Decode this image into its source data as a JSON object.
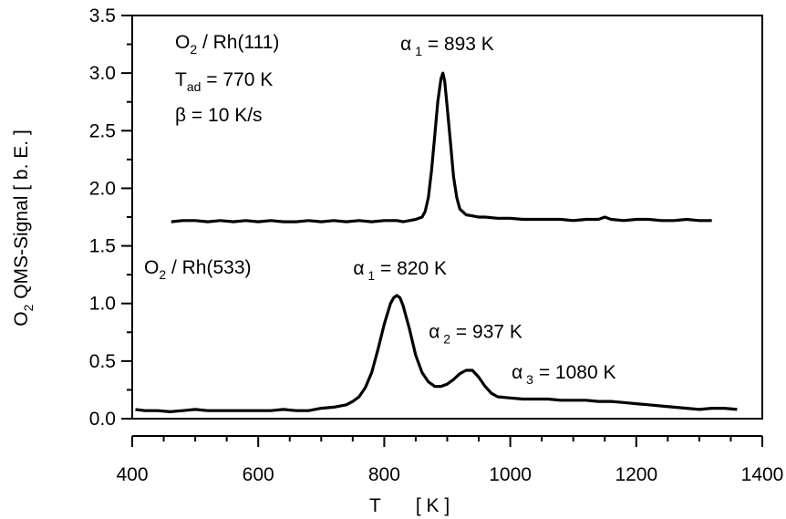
{
  "chart_data": {
    "type": "line",
    "xlabel": {
      "symbol": "T",
      "unit": "[ K ]"
    },
    "ylabel": {
      "prefix": "O",
      "sub": "2",
      "rest": " QMS-Signal  [ b. E. ]"
    },
    "xlim": [
      400,
      1400
    ],
    "ylim": [
      0,
      3.5
    ],
    "x_ticks": [
      "400",
      "600",
      "800",
      "1000",
      "1200",
      "1400"
    ],
    "y_ticks": [
      "0.0",
      "0.5",
      "1.0",
      "1.5",
      "2.0",
      "2.5",
      "3.0",
      "3.5"
    ],
    "grid": false,
    "series": [
      {
        "id": "rh111",
        "x": [
          462,
          480,
          500,
          520,
          540,
          560,
          580,
          600,
          620,
          640,
          660,
          680,
          700,
          720,
          740,
          760,
          780,
          800,
          820,
          830,
          840,
          850,
          860,
          865,
          870,
          875,
          880,
          885,
          890,
          893,
          896,
          900,
          905,
          910,
          915,
          920,
          930,
          940,
          950,
          960,
          980,
          1000,
          1020,
          1040,
          1060,
          1080,
          1100,
          1120,
          1140,
          1150,
          1160,
          1180,
          1200,
          1220,
          1240,
          1260,
          1280,
          1300,
          1320
        ],
        "y": [
          1.71,
          1.72,
          1.72,
          1.71,
          1.72,
          1.71,
          1.72,
          1.71,
          1.72,
          1.71,
          1.71,
          1.72,
          1.71,
          1.72,
          1.71,
          1.72,
          1.71,
          1.72,
          1.72,
          1.71,
          1.72,
          1.73,
          1.75,
          1.8,
          1.92,
          2.15,
          2.45,
          2.75,
          2.95,
          3.0,
          2.93,
          2.7,
          2.4,
          2.1,
          1.92,
          1.82,
          1.77,
          1.76,
          1.75,
          1.75,
          1.74,
          1.74,
          1.73,
          1.73,
          1.73,
          1.73,
          1.72,
          1.73,
          1.73,
          1.75,
          1.73,
          1.72,
          1.73,
          1.73,
          1.72,
          1.72,
          1.73,
          1.72,
          1.72
        ]
      },
      {
        "id": "rh533",
        "x": [
          405,
          420,
          440,
          460,
          480,
          500,
          520,
          540,
          560,
          580,
          600,
          620,
          640,
          660,
          680,
          700,
          720,
          740,
          750,
          760,
          770,
          780,
          790,
          800,
          810,
          815,
          820,
          825,
          830,
          840,
          850,
          860,
          870,
          880,
          890,
          900,
          910,
          920,
          930,
          940,
          950,
          960,
          970,
          980,
          1000,
          1020,
          1040,
          1060,
          1080,
          1100,
          1120,
          1140,
          1160,
          1180,
          1200,
          1220,
          1240,
          1260,
          1280,
          1300,
          1320,
          1340,
          1360
        ],
        "y": [
          0.08,
          0.07,
          0.07,
          0.06,
          0.07,
          0.08,
          0.07,
          0.07,
          0.07,
          0.07,
          0.07,
          0.07,
          0.08,
          0.07,
          0.07,
          0.09,
          0.1,
          0.12,
          0.15,
          0.19,
          0.27,
          0.4,
          0.6,
          0.82,
          1.0,
          1.05,
          1.07,
          1.05,
          0.98,
          0.78,
          0.55,
          0.4,
          0.32,
          0.28,
          0.28,
          0.3,
          0.34,
          0.39,
          0.42,
          0.42,
          0.36,
          0.28,
          0.22,
          0.19,
          0.18,
          0.17,
          0.17,
          0.17,
          0.16,
          0.16,
          0.16,
          0.15,
          0.15,
          0.14,
          0.13,
          0.12,
          0.11,
          0.1,
          0.09,
          0.08,
          0.09,
          0.09,
          0.08
        ]
      }
    ],
    "annotations": [
      {
        "greek": "α",
        "sub": "1",
        "text": " = 893 K",
        "x": 900,
        "y": 3.2
      },
      {
        "greek": "α",
        "sub": "1",
        "text": " = 820 K",
        "x": 825,
        "y": 1.25
      },
      {
        "greek": "α",
        "sub": "2",
        "text": " = 937 K",
        "x": 945,
        "y": 0.7
      },
      {
        "greek": "α",
        "sub": "3",
        "text": " = 1080 K",
        "x": 1085,
        "y": 0.35
      }
    ],
    "labels": {
      "rh111_line1": {
        "prefix": "O",
        "sub": "2",
        "text": " / Rh(111)"
      },
      "rh111_line2": {
        "prefix": "T",
        "sub": "ad",
        "text": " = 770 K"
      },
      "rh111_line3": {
        "text": "β = 10 K/s"
      },
      "rh533_line1": {
        "prefix": "O",
        "sub": "2",
        "text": " / Rh(533)"
      }
    }
  }
}
